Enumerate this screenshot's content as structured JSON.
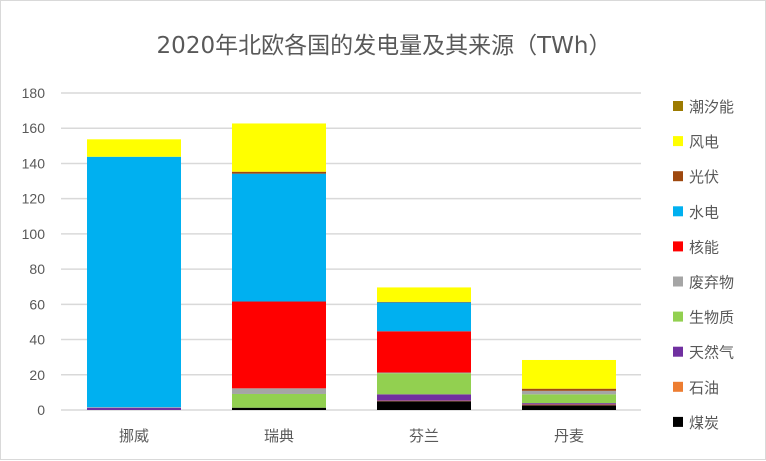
{
  "chart_data": {
    "type": "bar",
    "stacked": true,
    "title": "2020年北欧各国的发电量及其来源（TWh）",
    "xlabel": "",
    "ylabel": "",
    "ylim": [
      0,
      180
    ],
    "yticks": [
      0,
      20,
      40,
      60,
      80,
      100,
      120,
      140,
      160,
      180
    ],
    "grid": true,
    "legend_position": "right",
    "categories": [
      "挪威",
      "瑞典",
      "芬兰",
      "丹麦"
    ],
    "series": [
      {
        "name": "煤炭",
        "color": "#000000",
        "values": [
          0,
          1.3,
          5,
          2.7
        ]
      },
      {
        "name": "石油",
        "color": "#ED7D31",
        "values": [
          0,
          0,
          0.3,
          0.4
        ]
      },
      {
        "name": "天然气",
        "color": "#7030A0",
        "values": [
          1.3,
          0,
          3.6,
          0.8
        ]
      },
      {
        "name": "生物质",
        "color": "#92D050",
        "values": [
          0,
          7.8,
          12,
          5
        ]
      },
      {
        "name": "废弃物",
        "color": "#A5A5A5",
        "values": [
          0.3,
          3.2,
          0.4,
          2
        ]
      },
      {
        "name": "核能",
        "color": "#FF0000",
        "values": [
          0,
          49.3,
          23.4,
          0
        ]
      },
      {
        "name": "水电",
        "color": "#00B0F0",
        "values": [
          142.2,
          72.6,
          16.4,
          0
        ]
      },
      {
        "name": "光伏",
        "color": "#9E480E",
        "values": [
          0,
          1.1,
          0.3,
          1.2
        ]
      },
      {
        "name": "风电",
        "color": "#FFFF00",
        "values": [
          9.9,
          27.4,
          8.2,
          16.3
        ]
      },
      {
        "name": "潮汐能",
        "color": "#9C7A00",
        "values": [
          0,
          0,
          0,
          0
        ]
      }
    ]
  }
}
